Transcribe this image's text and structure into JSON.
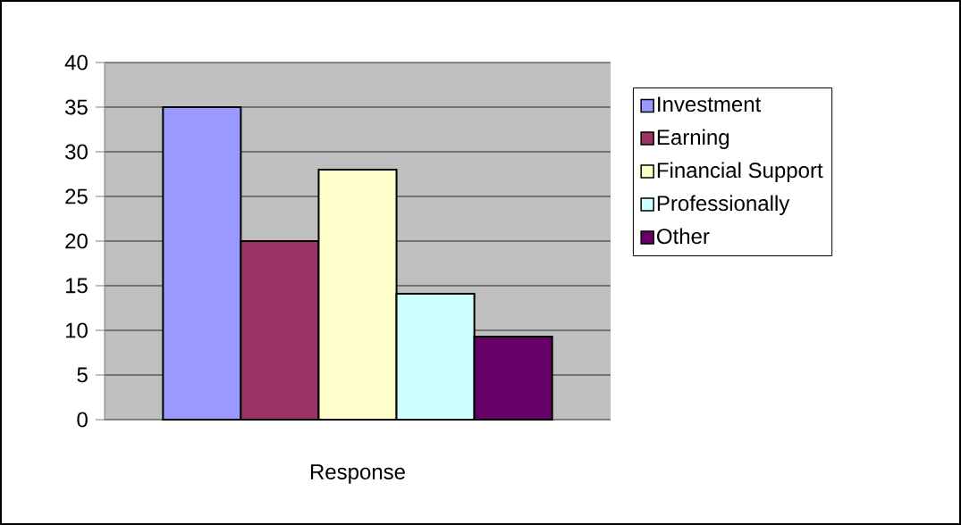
{
  "chart_data": {
    "type": "bar",
    "categories": [
      "Response"
    ],
    "series": [
      {
        "name": "Investment",
        "color": "#9999ff",
        "values": [
          35
        ]
      },
      {
        "name": "Earning",
        "color": "#993366",
        "values": [
          20
        ]
      },
      {
        "name": "Financial Support",
        "color": "#ffffcc",
        "values": [
          28
        ]
      },
      {
        "name": "Professionally",
        "color": "#ccffff",
        "values": [
          14.1
        ]
      },
      {
        "name": "Other",
        "color": "#660066",
        "values": [
          9.3
        ]
      }
    ],
    "ylim": [
      0,
      40
    ],
    "yticks": [
      0,
      5,
      10,
      15,
      20,
      25,
      30,
      35,
      40
    ],
    "grid": "y",
    "legend": "right"
  }
}
